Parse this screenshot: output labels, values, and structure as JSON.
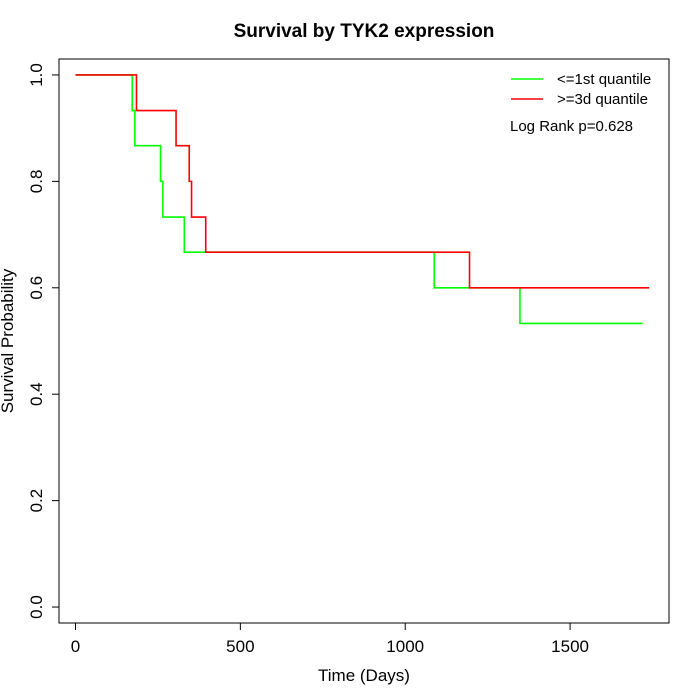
{
  "chart_data": {
    "type": "line",
    "title": "Survival by TYK2 expression",
    "xlabel": "Time (Days)",
    "ylabel": "Survival Probability",
    "xlim": [
      -50,
      1800
    ],
    "ylim": [
      -0.03,
      1.03
    ],
    "x_ticks": [
      0,
      500,
      1000,
      1500
    ],
    "y_ticks": [
      0.0,
      0.2,
      0.4,
      0.6,
      0.8,
      1.0
    ],
    "x_tick_labels": [
      "0",
      "500",
      "1000",
      "1500"
    ],
    "y_tick_labels": [
      "0.0",
      "0.2",
      "0.4",
      "0.6",
      "0.8",
      "1.0"
    ],
    "grid": false,
    "legend_position": "top-right",
    "series": [
      {
        "name": "<=1st quantile",
        "color": "#00FF00",
        "step": true,
        "x": [
          0,
          172,
          180,
          258,
          265,
          330,
          1088,
          1348,
          1720
        ],
        "y": [
          1.0,
          0.933,
          0.867,
          0.8,
          0.733,
          0.667,
          0.6,
          0.533,
          0.533
        ]
      },
      {
        "name": ">=3d quantile",
        "color": "#FF0000",
        "step": true,
        "x": [
          0,
          185,
          305,
          345,
          352,
          395,
          1195,
          1740
        ],
        "y": [
          1.0,
          0.933,
          0.867,
          0.8,
          0.733,
          0.667,
          0.6,
          0.6
        ]
      }
    ],
    "annotation": "Log Rank p=0.628"
  }
}
